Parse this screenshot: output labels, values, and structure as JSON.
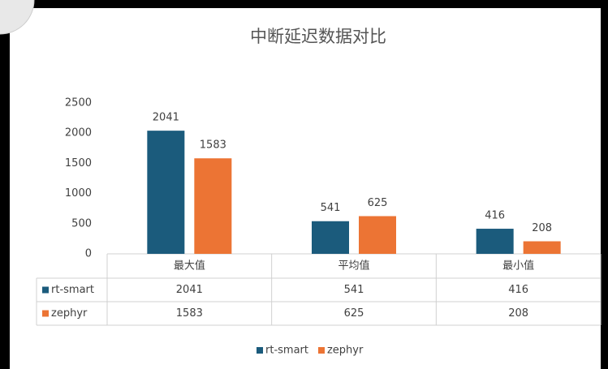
{
  "chart_data": {
    "type": "bar",
    "title": "中断延迟数据对比",
    "categories": [
      "最大值",
      "平均值",
      "最小值"
    ],
    "series": [
      {
        "name": "rt-smart",
        "color": "#1b5b7c",
        "values": [
          2041,
          541,
          416
        ]
      },
      {
        "name": "zephyr",
        "color": "#ec7434",
        "values": [
          1583,
          625,
          208
        ]
      }
    ],
    "ylim": [
      0,
      2500
    ],
    "yticks": [
      0,
      500,
      1000,
      1500,
      2000,
      2500
    ],
    "grid": false,
    "legend": "bottom"
  }
}
